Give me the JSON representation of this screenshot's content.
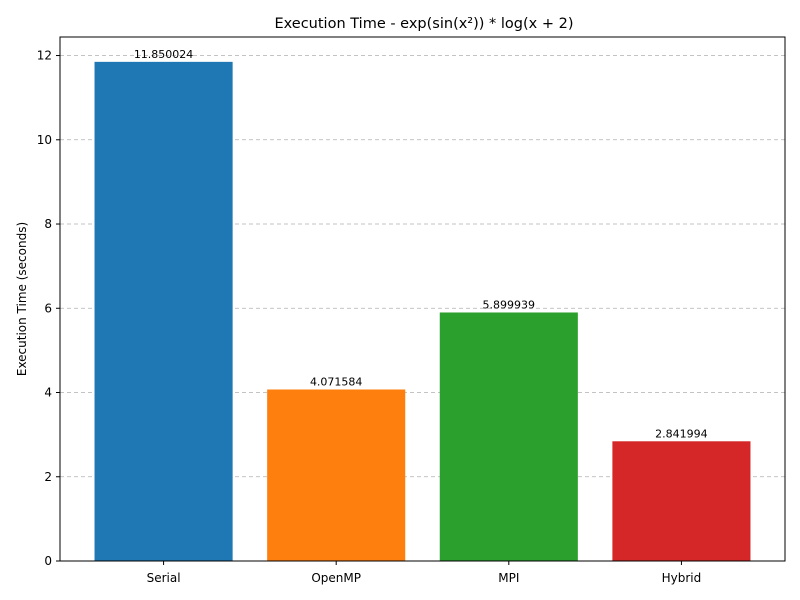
{
  "chart_data": {
    "type": "bar",
    "title": "Execution Time - exp(sin(x²)) * log(x + 2)",
    "xlabel": "",
    "ylabel": "Execution Time (seconds)",
    "categories": [
      "Serial",
      "OpenMP",
      "MPI",
      "Hybrid"
    ],
    "values": [
      11.850024,
      4.071584,
      5.899939,
      2.841994
    ],
    "value_labels": [
      "11.850024",
      "4.071584",
      "5.899939",
      "2.841994"
    ],
    "colors": [
      "#1f77b4",
      "#ff7f0e",
      "#2ca02c",
      "#d62728"
    ],
    "ylim": [
      0,
      12.44
    ],
    "yticks": [
      0,
      2,
      4,
      6,
      8,
      10,
      12
    ],
    "ytick_labels": [
      "0",
      "2",
      "4",
      "6",
      "8",
      "10",
      "12"
    ],
    "grid": "y"
  }
}
